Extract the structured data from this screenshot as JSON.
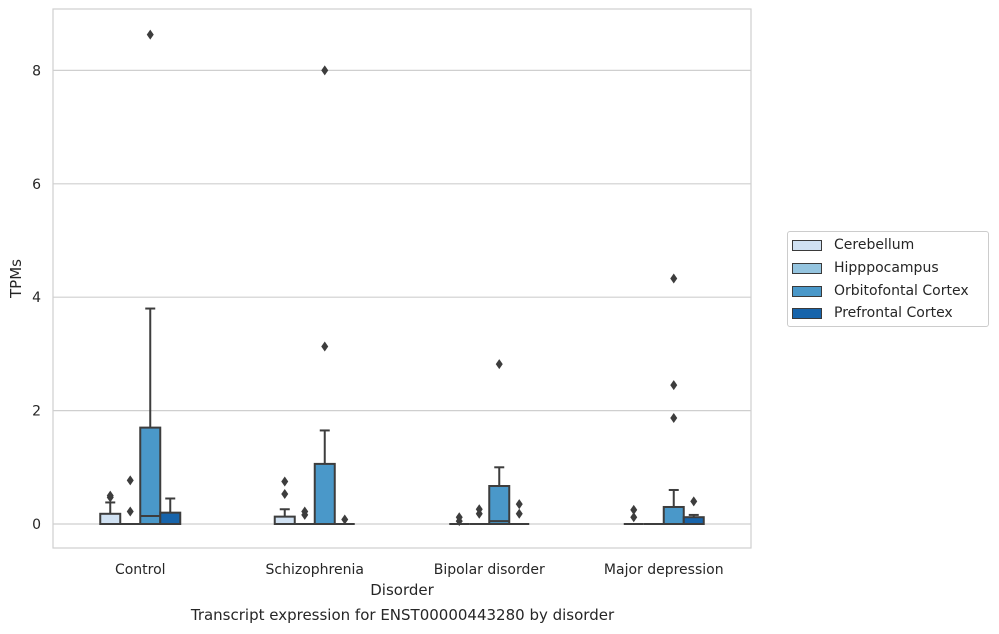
{
  "caption": "Transcript expression for ENST00000443280 by disorder",
  "chart_data": {
    "type": "boxplot",
    "title": "",
    "xlabel": "Disorder",
    "ylabel": "TPMs",
    "ylim": [
      -0.42,
      9.1
    ],
    "yticks": [
      0,
      2,
      4,
      6,
      8
    ],
    "grid": "horizontal",
    "legend_position": "right",
    "categories": [
      "Control",
      "Schizophrenia",
      "Bipolar disorder",
      "Major depression"
    ],
    "series": [
      {
        "name": "Cerebellum",
        "color": "#d0e1f2",
        "boxes": [
          {
            "q1": 0,
            "median": 0,
            "q3": 0.18,
            "whislo": 0,
            "whishi": 0.38,
            "fliers": [
              0.47,
              0.5
            ]
          },
          {
            "q1": 0,
            "median": 0,
            "q3": 0.13,
            "whislo": 0,
            "whishi": 0.26,
            "fliers": [
              0.53,
              0.75
            ]
          },
          {
            "q1": 0,
            "median": 0,
            "q3": 0,
            "whislo": 0,
            "whishi": 0,
            "fliers": [
              0.05,
              0.12
            ]
          },
          {
            "q1": 0,
            "median": 0,
            "q3": 0,
            "whislo": 0,
            "whishi": 0,
            "fliers": [
              0.12,
              0.25
            ]
          }
        ]
      },
      {
        "name": "Hipppocampus",
        "color": "#94c4df",
        "boxes": [
          {
            "q1": 0,
            "median": 0,
            "q3": 0,
            "whislo": 0,
            "whishi": 0,
            "fliers": [
              0.22,
              0.77
            ]
          },
          {
            "q1": 0,
            "median": 0,
            "q3": 0,
            "whislo": 0,
            "whishi": 0,
            "fliers": [
              0.16,
              0.22
            ]
          },
          {
            "q1": 0,
            "median": 0,
            "q3": 0,
            "whislo": 0,
            "whishi": 0,
            "fliers": [
              0.18,
              0.26
            ]
          },
          {
            "q1": 0,
            "median": 0,
            "q3": 0,
            "whislo": 0,
            "whishi": 0,
            "fliers": []
          }
        ]
      },
      {
        "name": "Orbitofontal Cortex",
        "color": "#4a98c9",
        "boxes": [
          {
            "q1": 0,
            "median": 0.14,
            "q3": 1.7,
            "whislo": 0,
            "whishi": 3.8,
            "fliers": [
              8.63
            ]
          },
          {
            "q1": 0,
            "median": 0,
            "q3": 1.06,
            "whislo": 0,
            "whishi": 1.65,
            "fliers": [
              3.13,
              8.0
            ]
          },
          {
            "q1": 0,
            "median": 0.05,
            "q3": 0.67,
            "whislo": 0,
            "whishi": 1.0,
            "fliers": [
              2.82
            ]
          },
          {
            "q1": 0,
            "median": 0,
            "q3": 0.3,
            "whislo": 0,
            "whishi": 0.6,
            "fliers": [
              1.87,
              2.45,
              4.33
            ]
          }
        ]
      },
      {
        "name": "Prefrontal Cortex",
        "color": "#1764ab",
        "boxes": [
          {
            "q1": 0,
            "median": 0,
            "q3": 0.2,
            "whislo": 0,
            "whishi": 0.45,
            "fliers": []
          },
          {
            "q1": 0,
            "median": 0,
            "q3": 0,
            "whislo": 0,
            "whishi": 0,
            "fliers": [
              0.08
            ]
          },
          {
            "q1": 0,
            "median": 0,
            "q3": 0,
            "whislo": 0,
            "whishi": 0,
            "fliers": [
              0.18,
              0.35
            ]
          },
          {
            "q1": 0,
            "median": 0,
            "q3": 0.12,
            "whislo": 0,
            "whishi": 0.16,
            "fliers": [
              0.4
            ]
          }
        ]
      }
    ]
  }
}
